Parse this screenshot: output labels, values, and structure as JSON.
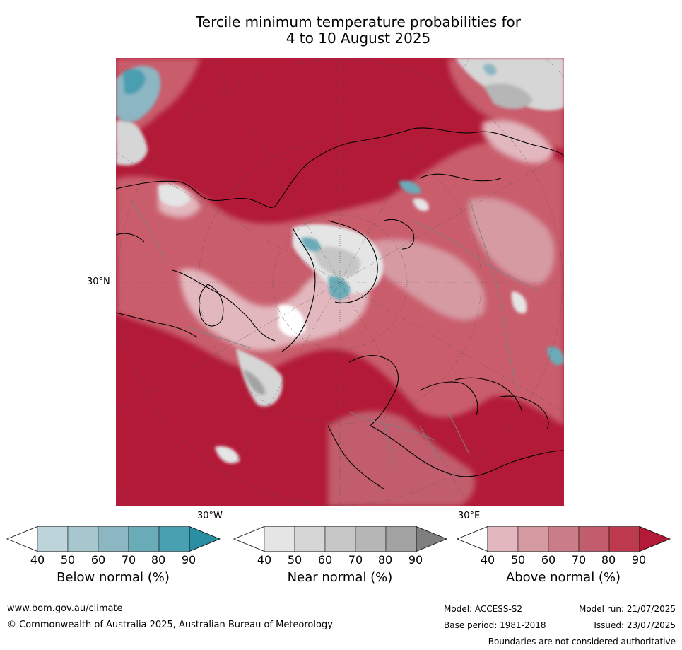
{
  "title_line1": "Tercile minimum temperature probabilities for",
  "title_line2": "4 to 10 August 2025",
  "map_labels": {
    "lat_30n": "30°N",
    "lon_30w": "30°W",
    "lon_30e": "30°E"
  },
  "legends": [
    {
      "title": "Below normal (%)",
      "ticks": [
        "40",
        "50",
        "60",
        "70",
        "80",
        "90"
      ],
      "colors": [
        "#ffffff",
        "#bcd4da",
        "#a6c7ce",
        "#8cb6c2",
        "#6aabb8",
        "#489fb0",
        "#2b8fa4"
      ]
    },
    {
      "title": "Near normal (%)",
      "ticks": [
        "40",
        "50",
        "60",
        "70",
        "80",
        "90"
      ],
      "colors": [
        "#ffffff",
        "#e5e5e5",
        "#d6d6d6",
        "#c6c6c6",
        "#b6b6b6",
        "#a2a2a2",
        "#7f7f7f"
      ]
    },
    {
      "title": "Above normal (%)",
      "ticks": [
        "40",
        "50",
        "60",
        "70",
        "80",
        "90"
      ],
      "colors": [
        "#ffffff",
        "#e2b8be",
        "#d69aa3",
        "#ca7d88",
        "#c15d6c",
        "#bd3a4e",
        "#b21a37"
      ]
    }
  ],
  "footer": {
    "website": "www.bom.gov.au/climate",
    "copyright": "© Commonwealth of Australia 2025, Australian Bureau of Meteorology",
    "model": "Model: ACCESS-S2",
    "model_run": "Model run: 21/07/2025",
    "base_period": "Base period: 1981-2018",
    "issued": "Issued: 23/07/2025",
    "boundaries_note": "Boundaries are not considered authoritative"
  },
  "colors": {
    "above_high": "#b21a37",
    "above_mid": "#c95d6c",
    "above_low": "#d69aa3",
    "near": "#c6c6c6",
    "below": "#2b8fa4",
    "coast": "#000000",
    "border": "#808080"
  }
}
